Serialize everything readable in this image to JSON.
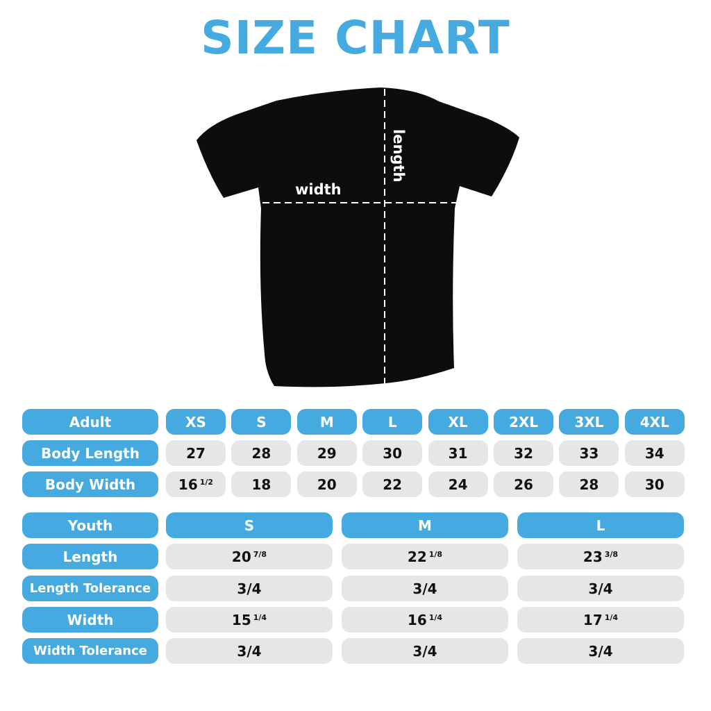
{
  "title": "SIZE CHART",
  "shirt": {
    "width_label": "width",
    "length_label": "length",
    "shirt_color": "#0d0d0d"
  },
  "colors": {
    "accent": "#45aae0",
    "cell_gray": "#e6e6e8"
  },
  "adult": {
    "header": "Adult",
    "sizes": [
      "XS",
      "S",
      "M",
      "L",
      "XL",
      "2XL",
      "3XL",
      "4XL"
    ],
    "rows": [
      {
        "label": "Body Length",
        "values": [
          {
            "whole": "27",
            "frac": ""
          },
          {
            "whole": "28",
            "frac": ""
          },
          {
            "whole": "29",
            "frac": ""
          },
          {
            "whole": "30",
            "frac": ""
          },
          {
            "whole": "31",
            "frac": ""
          },
          {
            "whole": "32",
            "frac": ""
          },
          {
            "whole": "33",
            "frac": ""
          },
          {
            "whole": "34",
            "frac": ""
          }
        ]
      },
      {
        "label": "Body Width",
        "values": [
          {
            "whole": "16",
            "frac": "1/2"
          },
          {
            "whole": "18",
            "frac": ""
          },
          {
            "whole": "20",
            "frac": ""
          },
          {
            "whole": "22",
            "frac": ""
          },
          {
            "whole": "24",
            "frac": ""
          },
          {
            "whole": "26",
            "frac": ""
          },
          {
            "whole": "28",
            "frac": ""
          },
          {
            "whole": "30",
            "frac": ""
          }
        ]
      }
    ]
  },
  "youth": {
    "header": "Youth",
    "sizes": [
      "S",
      "M",
      "L"
    ],
    "rows": [
      {
        "label": "Length",
        "values": [
          {
            "whole": "20",
            "frac": "7/8"
          },
          {
            "whole": "22",
            "frac": "1/8"
          },
          {
            "whole": "23",
            "frac": "3/8"
          }
        ]
      },
      {
        "label": "Length Tolerance",
        "values": [
          {
            "whole": "3/4",
            "frac": ""
          },
          {
            "whole": "3/4",
            "frac": ""
          },
          {
            "whole": "3/4",
            "frac": ""
          }
        ]
      },
      {
        "label": "Width",
        "values": [
          {
            "whole": "15",
            "frac": "1/4"
          },
          {
            "whole": "16",
            "frac": "1/4"
          },
          {
            "whole": "17",
            "frac": "1/4"
          }
        ]
      },
      {
        "label": "Width Tolerance",
        "values": [
          {
            "whole": "3/4",
            "frac": ""
          },
          {
            "whole": "3/4",
            "frac": ""
          },
          {
            "whole": "3/4",
            "frac": ""
          }
        ]
      }
    ]
  }
}
